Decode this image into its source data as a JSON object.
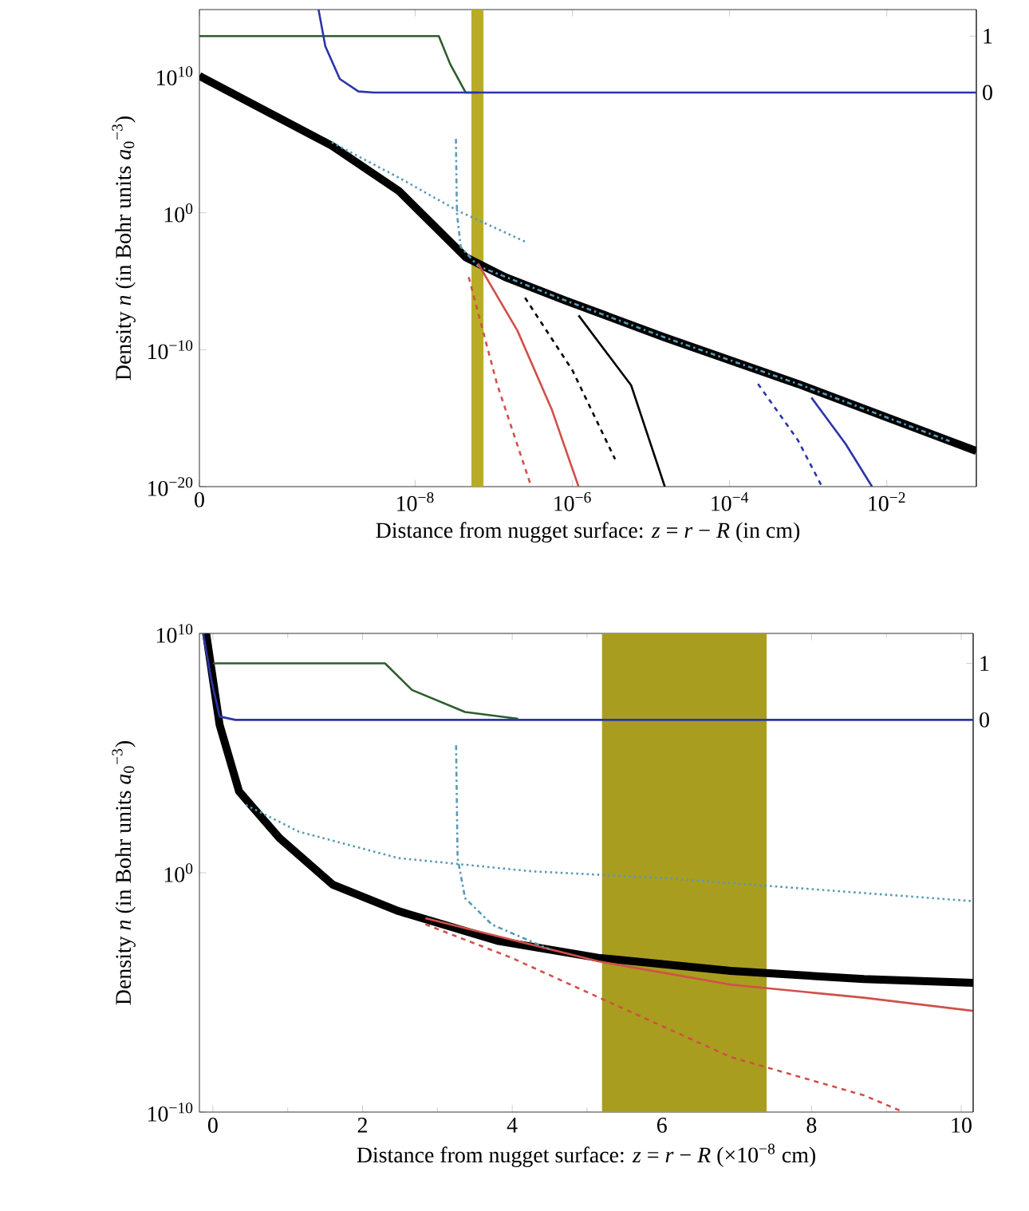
{
  "chart_data": [
    {
      "type": "line",
      "xlabel": "Distance from nugget surface: *z* = *r* − *R* (in cm)",
      "ylabel": "Density *n* (in Bohr units *a*$_{0}$$^{−3}$)",
      "log": "xy",
      "xlim": [
        1.8e-11,
        0.138
      ],
      "ylim": [
        1e-20,
        700000000000000.0
      ],
      "xticks": [
        {
          "value": 1.8e-11,
          "label": "0"
        },
        {
          "value": 1e-08,
          "label": "10$^{−8}$"
        },
        {
          "value": 1e-06,
          "label": "10$^{−6}$"
        },
        {
          "value": 0.0001,
          "label": "10$^{−4}$"
        },
        {
          "value": 0.01,
          "label": "10$^{−2}$"
        }
      ],
      "yticks": [
        {
          "value": 1e-20,
          "label": "10$^{−20}$"
        },
        {
          "value": 1e-10,
          "label": "10$^{−10}$"
        },
        {
          "value": 1,
          "label": "10$^{0}$"
        },
        {
          "value": 10000000000.0,
          "label": "10$^{10}$"
        }
      ],
      "y2lim": [
        -6.98,
        1.47
      ],
      "y2ticks": [
        0,
        1
      ],
      "bands": [
        {
          "axis": "x",
          "from": 5.2e-08,
          "to": 7.4e-08,
          "color": "#b8ac26"
        }
      ],
      "series": [
        {
          "color": "#000000",
          "x": [
            1.8e-11,
            8.7e-10,
            6.2e-09,
            4.4e-08,
            1.4e-07,
            8.1e-07,
            1.5e-05,
            0.00074,
            0.138
          ],
          "values": [
            10000000000.0,
            79000.0,
            40,
            0.00056,
            2e-05,
            4e-07,
            7.9e-10,
            3.2e-13,
            4e-18
          ]
        },
        {
          "color": "#5a9ab5",
          "line_style": "dotted",
          "x": [
            8.7e-10,
            6.2e-09,
            3.5e-08,
            2.5e-07
          ],
          "values": [
            140000.0,
            370,
            1.4,
            0.0079
          ]
        },
        {
          "color": "#5a9ab5",
          "line_style": "dashdot",
          "x": [
            3.3e-08,
            3.4e-08,
            3.8e-08,
            6.3e-08,
            8.1e-07,
            1.5e-05,
            0.00074,
            0.063
          ],
          "values": [
            250000.0,
            1,
            0.0032,
            0.00013,
            4e-07,
            7.9e-10,
            3.2e-13,
            2.1e-17
          ]
        },
        {
          "color": "#d0504a",
          "x": [
            6.3e-08,
            2e-07,
            5.5e-07,
            1.2e-06
          ],
          "values": [
            0.0002,
            2.5e-09,
            4e-15,
            1e-20
          ]
        },
        {
          "color": "#d0504a",
          "line_style": "dashed",
          "x": [
            4.8e-08,
            1.1e-07,
            3e-07
          ],
          "values": [
            2e-05,
            3.2e-13,
            1e-20
          ]
        },
        {
          "color": "#000000",
          "line_style": "dashed",
          "x": [
            2.5e-07,
            1e-06,
            3.5e-06
          ],
          "values": [
            6.3e-07,
            3.2e-12,
            1e-18
          ]
        },
        {
          "color": "#000000",
          "x": [
            1.2e-06,
            5.6e-06,
            1.5e-05
          ],
          "values": [
            3.2e-08,
            2.5e-13,
            1e-20
          ]
        },
        {
          "color": "#2b35a8",
          "line_style": "dashed",
          "x": [
            0.00023,
            0.00074,
            0.0015
          ],
          "values": [
            3.2e-13,
            2.5e-17,
            1e-20
          ]
        },
        {
          "color": "#2b35a8",
          "x": [
            0.0011,
            0.003,
            0.0065
          ],
          "values": [
            3.2e-14,
            1.3e-17,
            1e-20
          ]
        },
        {
          "color": "#2d5e2d",
          "axis": "y2",
          "x": [
            1.8e-11,
            2e-08,
            2.8e-08,
            4.4e-08,
            6.3e-08
          ],
          "values": [
            1,
            1,
            0.5,
            0,
            0
          ]
        },
        {
          "color": "#2b35a8",
          "axis": "y2",
          "x": [
            5.9e-10,
            7.2e-10,
            1.1e-09,
            1.9e-09,
            3e-09,
            0.138
          ],
          "values": [
            1.47,
            0.82,
            0.24,
            0.02,
            0,
            0
          ]
        }
      ]
    },
    {
      "type": "line",
      "xlabel": "Distance from nugget surface: *z* = *r* − *R* (×10$^{−8}$ cm)",
      "ylabel": "Density *n* (in Bohr units *a*$_{0}$$^{−3}$)",
      "log": "y",
      "xlim": [
        -0.18,
        10.16
      ],
      "ylim": [
        1e-10,
        10000000000.0
      ],
      "xticks": [
        0,
        2,
        4,
        6,
        8,
        10
      ],
      "yticks": [
        {
          "value": 1e-10,
          "label": "10$^{−10}$"
        },
        {
          "value": 1,
          "label": "10$^{0}$"
        },
        {
          "value": 10000000000.0,
          "label": "10$^{10}$"
        }
      ],
      "y2lim": [
        -6.94,
        1.53
      ],
      "y2ticks": [
        0,
        1
      ],
      "bands": [
        {
          "axis": "x",
          "from": 5.2,
          "to": 7.4,
          "color": "#a99d1f"
        }
      ],
      "series": [
        {
          "color": "#000000",
          "x": [
            -0.09,
            0.09,
            0.35,
            0.89,
            1.6,
            2.48,
            3.82,
            5.15,
            6.92,
            8.7,
            10.16
          ],
          "values": [
            10000000000.0,
            1500000.0,
            2500,
            28,
            0.32,
            0.025,
            0.0014,
            0.00028,
            7.9e-05,
            3.6e-05,
            2.5e-05
          ]
        },
        {
          "color": "#d0504a",
          "x": [
            2.84,
            5.15,
            6.92,
            8.7,
            10.16
          ],
          "values": [
            0.0126,
            0.0002,
            2.1e-05,
            6e-06,
            1.7e-06
          ]
        },
        {
          "color": "#d0504a",
          "line_style": "dashed",
          "x": [
            2.84,
            3.99,
            5.15,
            6.92,
            8.7,
            9.23
          ],
          "values": [
            0.007,
            0.00028,
            6.3e-06,
            2e-08,
            5e-10,
            1e-10
          ]
        },
        {
          "color": "#5a9ab5",
          "line_style": "dotted",
          "x": [
            0.44,
            1.15,
            2.48,
            4.26,
            6.03,
            7.8,
            10.16
          ],
          "values": [
            680,
            52,
            4.1,
            1.15,
            0.6,
            0.23,
            0.065
          ]
        },
        {
          "color": "#5a9ab5",
          "line_style": "dashdot",
          "x": [
            3.25,
            3.27,
            3.37,
            3.73,
            4.5
          ],
          "values": [
            210000.0,
            4.1,
            0.087,
            0.0068,
            0.00063
          ]
        },
        {
          "color": "#2d5e2d",
          "axis": "y2",
          "x": [
            0,
            2.3,
            2.66,
            3.37,
            4.08
          ],
          "values": [
            1,
            1,
            0.53,
            0.14,
            0.02
          ]
        },
        {
          "color": "#2b35a8",
          "axis": "y2",
          "x": [
            -0.13,
            -0.02,
            0.09,
            0.3,
            10.16
          ],
          "values": [
            1.53,
            0.7,
            0.06,
            0,
            0
          ]
        }
      ]
    }
  ]
}
